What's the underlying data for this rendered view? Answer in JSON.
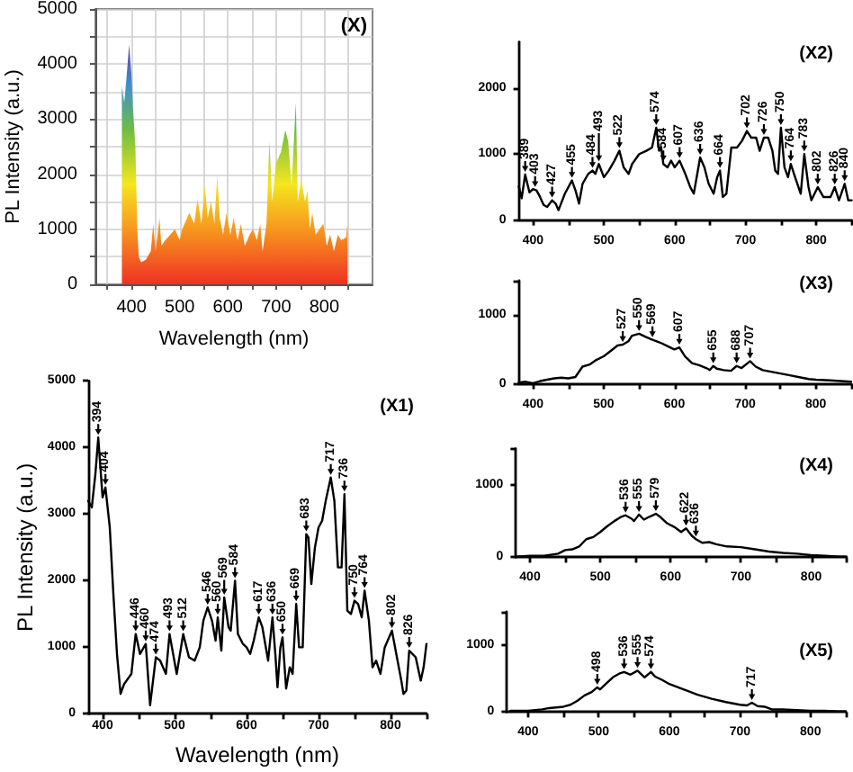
{
  "chart_data": [
    {
      "type": "area",
      "title": "(X)",
      "xlabel": "Wavelength (nm)",
      "ylabel": "PL Intensity (a.u.)",
      "color": "#ee3124",
      "grid": true,
      "x": [
        380,
        385,
        390,
        395,
        400,
        403,
        408,
        412,
        415,
        420,
        430,
        440,
        445,
        450,
        458,
        462,
        470,
        480,
        490,
        500,
        505,
        510,
        520,
        530,
        537,
        545,
        552,
        558,
        565,
        572,
        578,
        583,
        590,
        597,
        605,
        612,
        620,
        627,
        635,
        645,
        652,
        660,
        667,
        672,
        680,
        686,
        692,
        700,
        710,
        719,
        725,
        732,
        741,
        745,
        752,
        760,
        765,
        770,
        775,
        782,
        790,
        798,
        805,
        812,
        820,
        828,
        835,
        845,
        848
      ],
      "values": [
        3600,
        3300,
        3800,
        4350,
        3800,
        3200,
        2500,
        1000,
        500,
        400,
        450,
        600,
        1100,
        600,
        1200,
        700,
        800,
        900,
        1000,
        800,
        1000,
        1100,
        1300,
        1100,
        1550,
        1100,
        1800,
        1200,
        1500,
        1100,
        2000,
        1200,
        900,
        1300,
        900,
        1200,
        800,
        1100,
        700,
        900,
        1000,
        800,
        1100,
        600,
        1100,
        2600,
        1500,
        2200,
        2400,
        2800,
        2600,
        1800,
        3300,
        1500,
        1900,
        1500,
        1700,
        1000,
        1300,
        900,
        1000,
        1100,
        700,
        900,
        600,
        900,
        800,
        850,
        1100
      ],
      "xlim": [
        325,
        900
      ],
      "xticks": [
        {
          "value": 350,
          "label": null
        },
        400,
        {
          "value": 450,
          "label": null
        },
        500,
        {
          "value": 550,
          "label": null
        },
        600,
        {
          "value": 650,
          "label": null
        },
        700,
        {
          "value": 750,
          "label": null
        },
        800,
        {
          "value": 850,
          "label": null
        }
      ],
      "ylim": [
        0,
        5000
      ],
      "yticks": [
        0,
        {
          "value": 500,
          "label": null
        },
        1000,
        {
          "value": 1500,
          "label": null
        },
        2000,
        {
          "value": 2500,
          "label": null
        },
        3000,
        {
          "value": 3500,
          "label": null
        },
        4000,
        {
          "value": 4500,
          "label": null
        },
        5000
      ]
    },
    {
      "type": "line",
      "title": "(X1)",
      "xlabel": "Wavelength (nm)",
      "ylabel": "PL Intensity (a.u.)",
      "color": "#000000",
      "x": [
        380,
        385,
        390,
        394,
        400,
        404,
        410,
        415,
        420,
        425,
        430,
        440,
        446,
        452,
        460,
        466,
        474,
        480,
        488,
        493,
        498,
        503,
        512,
        520,
        528,
        535,
        540,
        546,
        552,
        557,
        560,
        565,
        569,
        575,
        578,
        584,
        588,
        595,
        600,
        605,
        610,
        617,
        622,
        630,
        636,
        640,
        643,
        647,
        650,
        655,
        660,
        664,
        669,
        673,
        678,
        683,
        686,
        690,
        695,
        700,
        705,
        710,
        717,
        722,
        727,
        732,
        736,
        740,
        745,
        750,
        755,
        760,
        764,
        770,
        775,
        780,
        786,
        792,
        802,
        808,
        815,
        818,
        822,
        826,
        835,
        842,
        846,
        850
      ],
      "values": [
        3200,
        3100,
        3600,
        4150,
        3250,
        3400,
        2800,
        1800,
        900,
        300,
        450,
        600,
        1200,
        900,
        1050,
        130,
        850,
        800,
        600,
        1200,
        900,
        600,
        1200,
        850,
        800,
        1000,
        1400,
        1600,
        1400,
        1100,
        1450,
        950,
        1750,
        1300,
        1250,
        2000,
        1200,
        1050,
        1000,
        900,
        1100,
        1450,
        1300,
        800,
        1450,
        900,
        400,
        1000,
        1150,
        380,
        700,
        600,
        1650,
        1000,
        1000,
        2700,
        2650,
        1950,
        2500,
        2800,
        2900,
        3200,
        3550,
        3200,
        2200,
        2200,
        3300,
        1550,
        1500,
        1700,
        1650,
        1450,
        1850,
        1400,
        700,
        800,
        600,
        1000,
        1250,
        900,
        500,
        300,
        350,
        950,
        850,
        500,
        700,
        1050
      ],
      "xlim": [
        380,
        850
      ],
      "xticks": [
        400,
        {
          "value": 450,
          "label": null
        },
        500,
        {
          "value": 550,
          "label": null
        },
        600,
        {
          "value": 650,
          "label": null
        },
        700,
        {
          "value": 750,
          "label": null
        },
        800,
        {
          "value": 850,
          "label": null
        }
      ],
      "ylim": [
        0,
        5000
      ],
      "yticks": [
        0,
        1000,
        2000,
        3000,
        4000,
        5000
      ],
      "annotations": [
        {
          "text": "394",
          "x": 394,
          "y": 4150
        },
        {
          "text": "404",
          "x": 404,
          "y": 3400
        },
        {
          "text": "446",
          "x": 446,
          "y": 1200
        },
        {
          "text": "460",
          "x": 460,
          "y": 1050
        },
        {
          "text": "474",
          "x": 474,
          "y": 850
        },
        {
          "text": "493",
          "x": 493,
          "y": 1200
        },
        {
          "text": "512",
          "x": 512,
          "y": 1200
        },
        {
          "text": "546",
          "x": 546,
          "y": 1600
        },
        {
          "text": "560",
          "x": 560,
          "y": 1450
        },
        {
          "text": "569",
          "x": 569,
          "y": 1750
        },
        {
          "text": "584",
          "x": 584,
          "y": 2000
        },
        {
          "text": "617",
          "x": 617,
          "y": 1450
        },
        {
          "text": "636",
          "x": 636,
          "y": 1450
        },
        {
          "text": "650",
          "x": 650,
          "y": 1150
        },
        {
          "text": "669",
          "x": 669,
          "y": 1650
        },
        {
          "text": "683",
          "x": 683,
          "y": 2700
        },
        {
          "text": "717",
          "x": 717,
          "y": 3550
        },
        {
          "text": "736",
          "x": 736,
          "y": 3300
        },
        {
          "text": "750",
          "x": 750,
          "y": 1700
        },
        {
          "text": "764",
          "x": 764,
          "y": 1850
        },
        {
          "text": "802",
          "x": 802,
          "y": 1250
        },
        {
          "text": "826",
          "x": 826,
          "y": 950
        }
      ]
    },
    {
      "type": "line",
      "title": "(X2)",
      "color": "#000000",
      "x": [
        380,
        384,
        389,
        395,
        400,
        405,
        410,
        415,
        420,
        427,
        432,
        436,
        445,
        455,
        460,
        465,
        470,
        478,
        484,
        488,
        493,
        500,
        507,
        515,
        522,
        528,
        535,
        540,
        550,
        560,
        568,
        574,
        578,
        581,
        584,
        590,
        595,
        600,
        607,
        615,
        622,
        627,
        636,
        642,
        648,
        655,
        660,
        664,
        668,
        673,
        680,
        688,
        695,
        702,
        708,
        715,
        720,
        726,
        732,
        738,
        742,
        746,
        750,
        755,
        760,
        764,
        770,
        778,
        783,
        789,
        793,
        802,
        810,
        820,
        826,
        832,
        840,
        845,
        850
      ],
      "values": [
        510,
        330,
        690,
        420,
        470,
        450,
        350,
        230,
        200,
        300,
        250,
        150,
        400,
        600,
        450,
        250,
        550,
        700,
        750,
        700,
        850,
        650,
        750,
        900,
        1050,
        800,
        700,
        850,
        1000,
        1050,
        1100,
        1400,
        1050,
        1100,
        850,
        800,
        900,
        800,
        900,
        700,
        500,
        400,
        950,
        800,
        550,
        400,
        650,
        750,
        350,
        400,
        1100,
        1100,
        1200,
        1350,
        1250,
        1250,
        1050,
        1250,
        1250,
        1050,
        750,
        700,
        1400,
        800,
        650,
        850,
        650,
        400,
        1000,
        500,
        300,
        500,
        350,
        350,
        500,
        300,
        550,
        300,
        300
      ],
      "xlim": [
        380,
        850
      ],
      "xticks": [
        400,
        {
          "value": 450,
          "label": null
        },
        500,
        {
          "value": 550,
          "label": null
        },
        600,
        {
          "value": 650,
          "label": null
        },
        700,
        {
          "value": 750,
          "label": null
        },
        800,
        {
          "value": 850,
          "label": null
        }
      ],
      "ylim": [
        0,
        2700
      ],
      "yticks": [
        0,
        1000,
        2000
      ],
      "annotations": [
        {
          "text": "389",
          "x": 389,
          "y": 690
        },
        {
          "text": "403",
          "x": 403,
          "y": 460
        },
        {
          "text": "427",
          "x": 427,
          "y": 300
        },
        {
          "text": "455",
          "x": 455,
          "y": 600
        },
        {
          "text": "484",
          "x": 484,
          "y": 750
        },
        {
          "text": "493",
          "x": 493,
          "y": 850
        },
        {
          "text": "522",
          "x": 522,
          "y": 1050
        },
        {
          "text": "574",
          "x": 574,
          "y": 1400
        },
        {
          "text": "584",
          "x": 584,
          "y": 850
        },
        {
          "text": "607",
          "x": 607,
          "y": 900
        },
        {
          "text": "636",
          "x": 636,
          "y": 950
        },
        {
          "text": "664",
          "x": 664,
          "y": 750
        },
        {
          "text": "702",
          "x": 702,
          "y": 1350
        },
        {
          "text": "726",
          "x": 726,
          "y": 1250
        },
        {
          "text": "750",
          "x": 750,
          "y": 1400
        },
        {
          "text": "764",
          "x": 764,
          "y": 850
        },
        {
          "text": "783",
          "x": 783,
          "y": 1000
        },
        {
          "text": "802",
          "x": 802,
          "y": 500
        },
        {
          "text": "826",
          "x": 826,
          "y": 500
        },
        {
          "text": "840",
          "x": 840,
          "y": 550
        }
      ]
    },
    {
      "type": "line",
      "title": "(X3)",
      "color": "#000000",
      "x": [
        380,
        390,
        400,
        410,
        420,
        430,
        440,
        450,
        460,
        470,
        480,
        490,
        500,
        510,
        520,
        527,
        535,
        540,
        550,
        560,
        569,
        580,
        590,
        600,
        607,
        615,
        625,
        635,
        645,
        650,
        655,
        660,
        670,
        680,
        688,
        695,
        707,
        715,
        725,
        740,
        760,
        780,
        790,
        800,
        820,
        835,
        850
      ],
      "values": [
        20,
        30,
        10,
        40,
        60,
        80,
        90,
        80,
        100,
        250,
        280,
        350,
        400,
        480,
        560,
        570,
        620,
        700,
        730,
        680,
        640,
        600,
        550,
        500,
        530,
        400,
        300,
        270,
        230,
        200,
        260,
        220,
        200,
        190,
        260,
        230,
        330,
        250,
        200,
        170,
        130,
        90,
        70,
        60,
        50,
        40,
        30
      ],
      "xlim": [
        380,
        850
      ],
      "xticks": [
        400,
        {
          "value": 450,
          "label": null
        },
        500,
        {
          "value": 550,
          "label": null
        },
        600,
        {
          "value": 650,
          "label": null
        },
        700,
        {
          "value": 750,
          "label": null
        },
        800,
        {
          "value": 850,
          "label": null
        }
      ],
      "ylim": [
        0,
        1500
      ],
      "yticks": [
        0,
        1000,
        {
          "value": 1500,
          "label": null
        }
      ],
      "annotations": [
        {
          "text": "527",
          "x": 527,
          "y": 570
        },
        {
          "text": "550",
          "x": 550,
          "y": 730
        },
        {
          "text": "569",
          "x": 569,
          "y": 640
        },
        {
          "text": "607",
          "x": 607,
          "y": 530
        },
        {
          "text": "655",
          "x": 655,
          "y": 260
        },
        {
          "text": "688",
          "x": 688,
          "y": 260
        },
        {
          "text": "707",
          "x": 707,
          "y": 330
        }
      ]
    },
    {
      "type": "line",
      "title": "(X4)",
      "color": "#000000",
      "x": [
        380,
        400,
        420,
        440,
        450,
        460,
        470,
        480,
        490,
        500,
        510,
        520,
        530,
        536,
        545,
        548,
        555,
        562,
        570,
        579,
        585,
        595,
        605,
        615,
        622,
        630,
        636,
        645,
        655,
        665,
        680,
        700,
        720,
        740,
        760,
        780,
        800,
        820,
        840,
        850
      ],
      "values": [
        10,
        20,
        20,
        50,
        100,
        110,
        150,
        250,
        280,
        350,
        430,
        500,
        560,
        580,
        530,
        500,
        590,
        520,
        560,
        600,
        560,
        470,
        420,
        350,
        400,
        300,
        250,
        200,
        210,
        180,
        150,
        140,
        110,
        80,
        60,
        50,
        30,
        20,
        10,
        10
      ],
      "xlim": [
        380,
        850
      ],
      "xticks": [
        400,
        {
          "value": 450,
          "label": null
        },
        500,
        {
          "value": 550,
          "label": null
        },
        600,
        {
          "value": 650,
          "label": null
        },
        700,
        {
          "value": 750,
          "label": null
        },
        800,
        {
          "value": 850,
          "label": null
        }
      ],
      "ylim": [
        0,
        1500
      ],
      "yticks": [
        0,
        1000,
        {
          "value": 1500,
          "label": null
        }
      ],
      "annotations": [
        {
          "text": "536",
          "x": 536,
          "y": 580
        },
        {
          "text": "555",
          "x": 555,
          "y": 590
        },
        {
          "text": "579",
          "x": 579,
          "y": 600
        },
        {
          "text": "622",
          "x": 622,
          "y": 400
        },
        {
          "text": "636",
          "x": 636,
          "y": 250
        }
      ]
    },
    {
      "type": "line",
      "title": "(X5)",
      "color": "#000000",
      "x": [
        375,
        380,
        400,
        420,
        430,
        440,
        450,
        460,
        470,
        480,
        490,
        498,
        502,
        510,
        520,
        530,
        536,
        545,
        555,
        565,
        574,
        580,
        590,
        600,
        620,
        640,
        660,
        680,
        700,
        710,
        717,
        725,
        735,
        745,
        760,
        780,
        800,
        820,
        840,
        850
      ],
      "values": [
        20,
        20,
        20,
        40,
        60,
        70,
        80,
        110,
        170,
        250,
        300,
        370,
        340,
        420,
        520,
        580,
        600,
        560,
        620,
        520,
        600,
        530,
        480,
        420,
        340,
        260,
        200,
        150,
        110,
        100,
        140,
        90,
        80,
        40,
        40,
        30,
        20,
        20,
        10,
        10
      ],
      "xlim": [
        370,
        850
      ],
      "xticks": [
        400,
        {
          "value": 450,
          "label": null
        },
        500,
        {
          "value": 550,
          "label": null
        },
        600,
        {
          "value": 650,
          "label": null
        },
        700,
        {
          "value": 750,
          "label": null
        },
        800,
        {
          "value": 850,
          "label": null
        }
      ],
      "ylim": [
        0,
        1500
      ],
      "yticks": [
        0,
        1000,
        {
          "value": 1500,
          "label": null
        }
      ],
      "annotations": [
        {
          "text": "498",
          "x": 498,
          "y": 370
        },
        {
          "text": "536",
          "x": 536,
          "y": 600
        },
        {
          "text": "555",
          "x": 555,
          "y": 620
        },
        {
          "text": "574",
          "x": 574,
          "y": 600
        },
        {
          "text": "717",
          "x": 717,
          "y": 140
        }
      ]
    }
  ]
}
